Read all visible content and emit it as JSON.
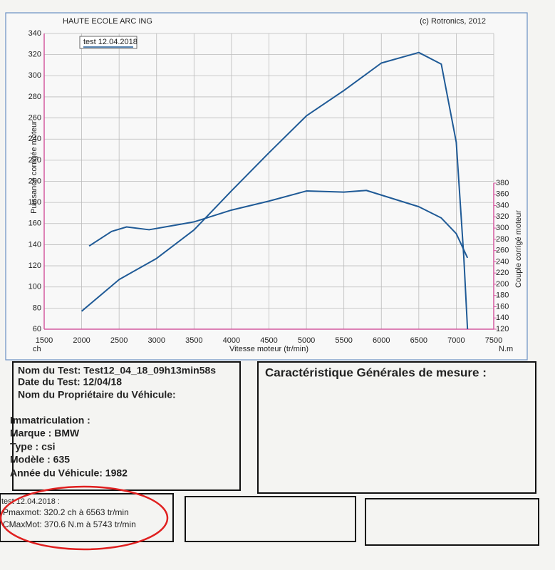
{
  "header": {
    "institution": "HAUTE ECOLE ARC ING",
    "copyright": "(c) Rotronics, 2012"
  },
  "chart_data": {
    "type": "line",
    "x_label": "Vitesse moteur (tr/min)",
    "y_label": "Puissance corrigée moteur",
    "y2_label": "Couple corrigé moteur",
    "y_unit": "ch",
    "y2_unit": "N.m",
    "xlim": [
      1500,
      7500
    ],
    "xticks": [
      1500,
      2000,
      2500,
      3000,
      3500,
      4000,
      4500,
      5000,
      5500,
      6000,
      6500,
      7000,
      7500
    ],
    "ylim": [
      60,
      340
    ],
    "yticks": [
      60,
      80,
      100,
      120,
      140,
      160,
      180,
      200,
      220,
      240,
      260,
      280,
      300,
      320,
      340
    ],
    "y2lim": [
      120,
      380
    ],
    "y2ticks": [
      120,
      140,
      160,
      180,
      200,
      220,
      240,
      260,
      280,
      300,
      320,
      340,
      360,
      380
    ],
    "grid": true,
    "legend": "top-left",
    "series": [
      {
        "name": "test 12.04.2018",
        "color": "#1f5a96",
        "x": [
          2000,
          2500,
          3000,
          3500,
          4000,
          4500,
          5000,
          5500,
          6000,
          6500,
          6800,
          7000,
          7100,
          7150
        ],
        "values": [
          77,
          107,
          127,
          154,
          191,
          227,
          262,
          286,
          312,
          322,
          311,
          237,
          129,
          60
        ]
      },
      {
        "color": "#1f5a96",
        "axis": "y2",
        "x": [
          2100,
          2400,
          2600,
          2900,
          3500,
          4000,
          4500,
          5000,
          5500,
          5800,
          6500,
          6800,
          7000,
          7150
        ],
        "values": [
          268,
          294,
          302,
          297,
          311,
          332,
          348,
          366,
          364,
          367,
          338,
          318,
          290,
          247
        ]
      }
    ]
  },
  "test_info": {
    "lines": [
      "Nom du Test: Test12_04_18_09h13min58s",
      "Date du Test: 12/04/18",
      "Nom du Propriétaire du Véhicule:",
      "Immatriculation  :",
      "Marque  : BMW",
      "Type  : csi",
      "Modèle  : 635",
      "Année du Véhicule: 1982"
    ]
  },
  "measure": {
    "title": "Caractéristique Générales de mesure :"
  },
  "results": {
    "title": "test 12.04.2018 :",
    "lines": [
      "Pmaxmot: 320.2 ch à 6563 tr/min",
      "CMaxMot: 370.6 N.m à 5743 tr/min"
    ]
  }
}
